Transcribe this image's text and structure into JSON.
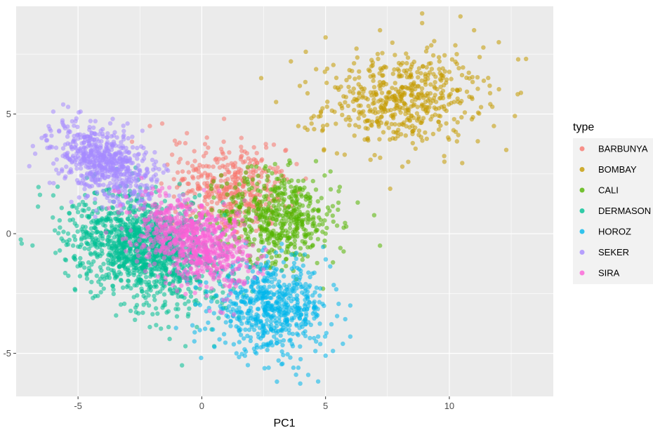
{
  "chart_data": {
    "type": "scatter",
    "title": "",
    "xlabel": "PC1",
    "ylabel": "",
    "xlim": [
      -7.5,
      14.2
    ],
    "ylim": [
      -6.8,
      9.5
    ],
    "xticks": [
      -5,
      0,
      5,
      10
    ],
    "xtick_labels": [
      "-5",
      "0",
      "5",
      "10"
    ],
    "yticks": [
      -5,
      0,
      5
    ],
    "ytick_labels": [
      "-5",
      "0",
      "5"
    ],
    "grid": true,
    "panel_background": "#ebebeb",
    "grid_color": "#ffffff",
    "legend": {
      "title": "type",
      "position": "right"
    },
    "point_alpha": 0.55,
    "series": [
      {
        "name": "BARBUNYA",
        "color": "#F8766D",
        "cluster": {
          "center": [
            1.2,
            1.9
          ],
          "spread": [
            1.1,
            0.95
          ],
          "rotation_deg": -20,
          "n": 380
        },
        "points": [
          [
            0.9,
            4.8
          ],
          [
            -1.6,
            4.6
          ],
          [
            -2.1,
            4.5
          ],
          [
            1.6,
            4.0
          ],
          [
            -0.6,
            4.2
          ],
          [
            3.4,
            3.5
          ],
          [
            4.2,
            2.3
          ],
          [
            -0.9,
            3.8
          ],
          [
            2.6,
            3.6
          ],
          [
            -1.2,
            3.3
          ]
        ]
      },
      {
        "name": "BOMBAY",
        "color": "#C49A00",
        "cluster": {
          "center": [
            8.1,
            5.6
          ],
          "spread": [
            1.6,
            0.95
          ],
          "rotation_deg": 5,
          "n": 520
        },
        "points": [
          [
            8.9,
            9.2
          ],
          [
            8.9,
            8.8
          ],
          [
            7.2,
            8.5
          ],
          [
            5.0,
            8.2
          ],
          [
            11.0,
            8.5
          ],
          [
            12.0,
            8.0
          ],
          [
            13.1,
            7.3
          ],
          [
            3.6,
            7.2
          ],
          [
            4.2,
            7.6
          ],
          [
            2.4,
            6.5
          ],
          [
            12.3,
            3.5
          ],
          [
            8.1,
            2.8
          ],
          [
            11.8,
            4.5
          ],
          [
            3.0,
            5.5
          ],
          [
            3.9,
            4.5
          ],
          [
            9.6,
            7.2
          ],
          [
            10.3,
            7.5
          ],
          [
            4.9,
            4.5
          ]
        ]
      },
      {
        "name": "CALI",
        "color": "#53B400",
        "cluster": {
          "center": [
            3.1,
            0.7
          ],
          "spread": [
            1.2,
            0.95
          ],
          "rotation_deg": -5,
          "n": 520
        },
        "points": [
          [
            7.2,
            -0.5
          ],
          [
            6.3,
            1.3
          ],
          [
            5.2,
            2.6
          ],
          [
            5.5,
            1.0
          ],
          [
            5.3,
            -1.2
          ],
          [
            5.6,
            -0.6
          ],
          [
            4.9,
            -2.3
          ],
          [
            2.2,
            2.8
          ],
          [
            5.0,
            0.0
          ]
        ]
      },
      {
        "name": "DERMASON",
        "color": "#00C094",
        "cluster": {
          "center": [
            -2.3,
            -0.6
          ],
          "spread": [
            1.55,
            1.05
          ],
          "rotation_deg": -25,
          "n": 1300
        },
        "points": [
          [
            -6.0,
            1.6
          ],
          [
            -5.4,
            0.0
          ],
          [
            -5.6,
            -0.3
          ],
          [
            -5.0,
            0.9
          ],
          [
            -0.8,
            -5.5
          ],
          [
            0.5,
            -4.7
          ],
          [
            -1.3,
            -4.4
          ],
          [
            -2.1,
            -3.9
          ],
          [
            -2.7,
            -3.6
          ],
          [
            -4.9,
            -1.3
          ],
          [
            -5.2,
            -0.5
          ],
          [
            -4.2,
            -2.6
          ],
          [
            -0.2,
            -3.9
          ],
          [
            1.5,
            -3.5
          ],
          [
            0.4,
            -4.0
          ]
        ]
      },
      {
        "name": "HOROZ",
        "color": "#00B6EB",
        "cluster": {
          "center": [
            2.8,
            -3.1
          ],
          "spread": [
            1.15,
            0.9
          ],
          "rotation_deg": 0,
          "n": 600
        },
        "points": [
          [
            4.3,
            -5.9
          ],
          [
            3.9,
            -5.6
          ],
          [
            4.7,
            -4.3
          ],
          [
            6.0,
            -4.3
          ],
          [
            5.7,
            -4.6
          ],
          [
            2.7,
            -5.6
          ],
          [
            6.0,
            -3.0
          ],
          [
            5.3,
            -4.9
          ],
          [
            5.0,
            -5.1
          ],
          [
            3.1,
            -5.3
          ],
          [
            1.4,
            -5.0
          ],
          [
            -0.3,
            -4.5
          ],
          [
            0.9,
            -4.2
          ]
        ]
      },
      {
        "name": "SEKER",
        "color": "#A58AFF",
        "cluster": {
          "center": [
            -3.9,
            2.9
          ],
          "spread": [
            1.1,
            0.65
          ],
          "rotation_deg": -30,
          "n": 650
        },
        "points": [
          [
            -5.6,
            5.4
          ],
          [
            -5.4,
            5.3
          ],
          [
            -6.0,
            5.1
          ],
          [
            -6.3,
            4.1
          ],
          [
            -4.9,
            5.1
          ],
          [
            -6.1,
            4.3
          ],
          [
            -2.4,
            4.3
          ],
          [
            -1.9,
            3.4
          ],
          [
            -3.0,
            4.6
          ],
          [
            -4.3,
            4.7
          ],
          [
            -5.1,
            4.7
          ]
        ]
      },
      {
        "name": "SIRA",
        "color": "#FB61D7",
        "cluster": {
          "center": [
            -0.3,
            -0.3
          ],
          "spread": [
            1.25,
            0.75
          ],
          "rotation_deg": -30,
          "n": 750
        },
        "points": [
          [
            -2.4,
            1.6
          ],
          [
            -1.6,
            1.9
          ],
          [
            1.1,
            -2.2
          ],
          [
            1.6,
            -2.0
          ],
          [
            0.2,
            -2.6
          ],
          [
            -1.0,
            -2.4
          ],
          [
            2.1,
            -1.4
          ]
        ]
      }
    ]
  }
}
